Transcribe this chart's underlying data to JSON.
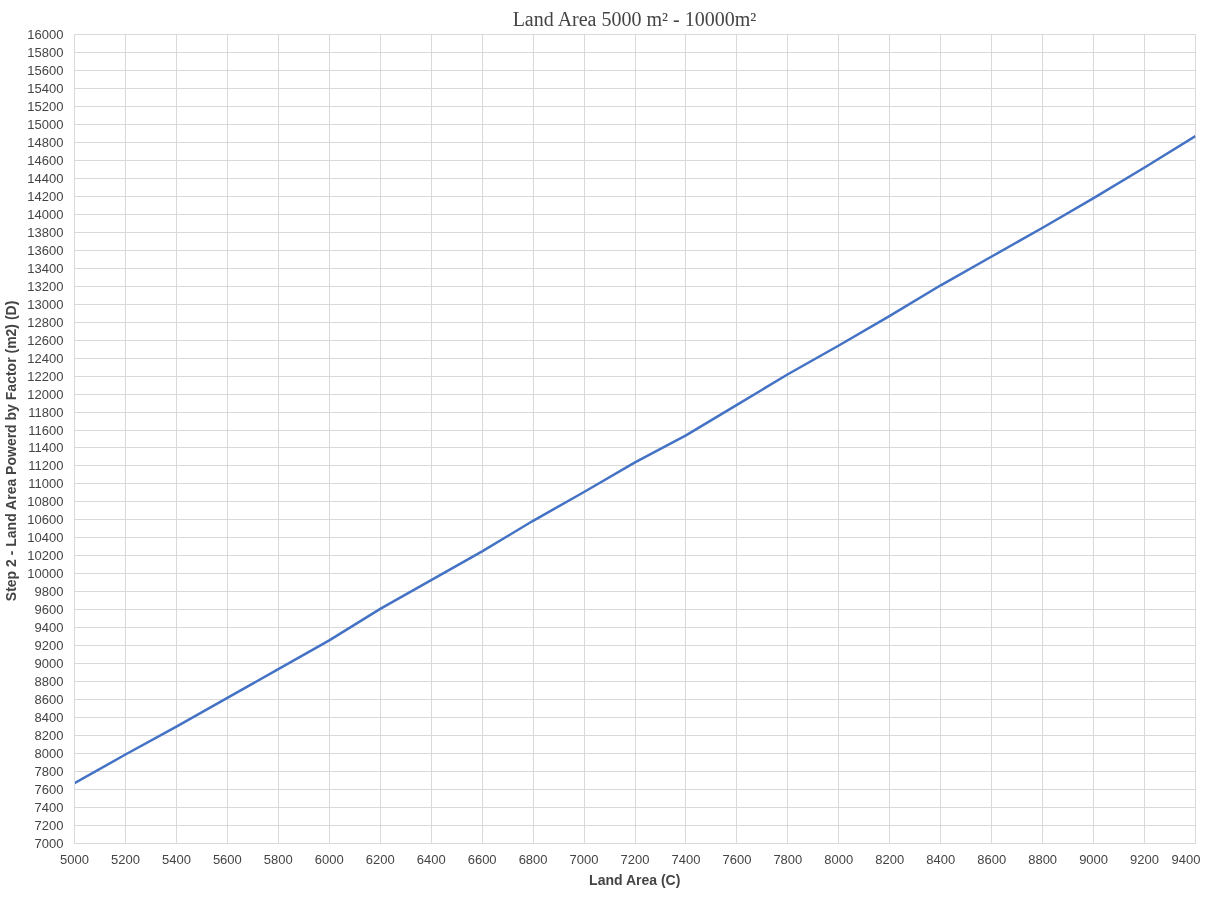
{
  "chart_data": {
    "type": "line",
    "title": "Land Area 5000 m² - 10000m²",
    "xlabel": "Land Area (C)",
    "ylabel": "Step 2 - Land Area Powerd by Factor  (m2)      (D)",
    "x": [
      5000,
      5200,
      5400,
      5600,
      5800,
      6000,
      6200,
      6400,
      6600,
      6800,
      7000,
      7200,
      7400,
      7600,
      7800,
      8000,
      8200,
      8400,
      8600,
      8800,
      9000,
      9200,
      9400
    ],
    "series": [
      {
        "color": "#4472c4",
        "values": [
          7670,
          7990,
          8300,
          8620,
          8940,
          9260,
          9610,
          9930,
          10250,
          10590,
          10910,
          11240,
          11540,
          11880,
          12220,
          12540,
          12870,
          13210,
          13530,
          13850,
          14180,
          14520,
          14870
        ]
      }
    ],
    "xlim": [
      5000,
      9400
    ],
    "xticks": [
      5000,
      5200,
      5400,
      5600,
      5800,
      6000,
      6200,
      6400,
      6600,
      6800,
      7000,
      7200,
      7400,
      7600,
      7800,
      8000,
      8200,
      8400,
      8600,
      8800,
      9000,
      9200,
      9400
    ],
    "ylim": [
      7000,
      16000
    ],
    "yticks": [
      7000,
      7200,
      7400,
      7600,
      7800,
      8000,
      8200,
      8400,
      8600,
      8800,
      9000,
      9200,
      9400,
      9600,
      9800,
      10000,
      10200,
      10400,
      10600,
      10800,
      11000,
      11200,
      11400,
      11600,
      11800,
      12000,
      12200,
      12400,
      12600,
      12800,
      13000,
      13200,
      13400,
      13600,
      13800,
      14000,
      14200,
      14400,
      14600,
      14800,
      15000,
      15200,
      15400,
      15600,
      15800,
      16000
    ],
    "grid": true,
    "marker": "none",
    "line_style": "solid"
  }
}
